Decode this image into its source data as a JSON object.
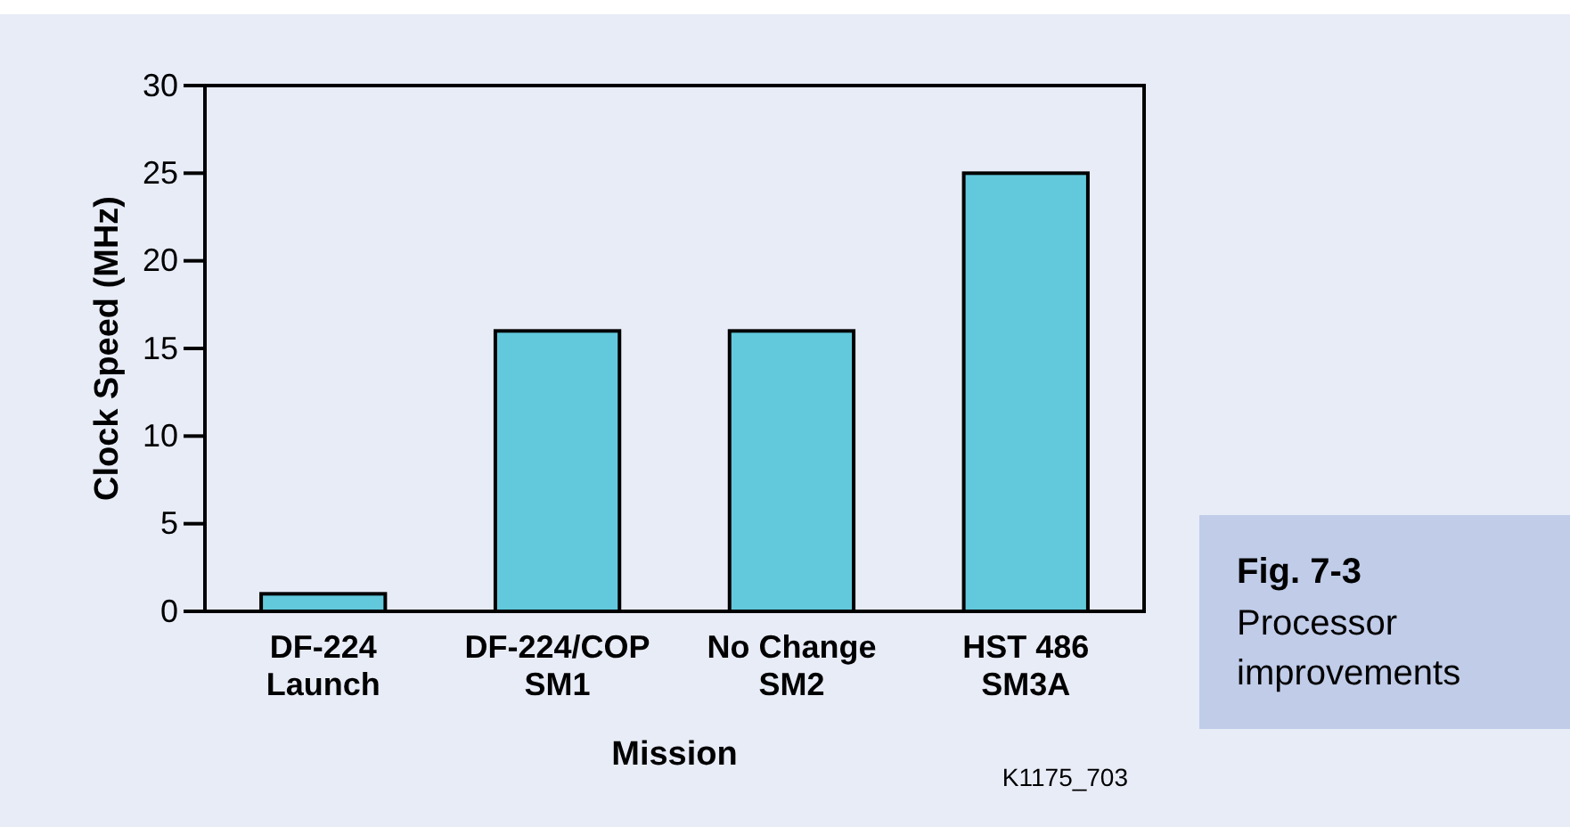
{
  "chart_data": {
    "type": "bar",
    "xlabel": "Mission",
    "ylabel": "Clock Speed (MHz)",
    "categories": [
      "DF-224\nLaunch",
      "DF-224/COP\nSM1",
      "No Change\nSM2",
      "HST 486\nSM3A"
    ],
    "values": [
      1,
      16,
      16,
      25
    ],
    "color": "#62c9dc",
    "ylim": [
      0,
      30
    ],
    "yticks": [
      0,
      5,
      10,
      15,
      20,
      25,
      30
    ],
    "grid": false,
    "annotations": [
      "Fig. 7-3",
      "Processor\nimprovements",
      "K1175_703"
    ]
  }
}
